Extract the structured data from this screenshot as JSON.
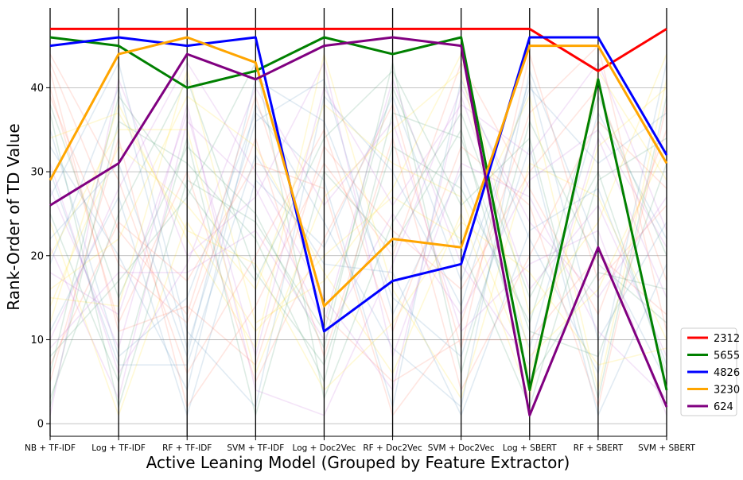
{
  "chart_data": {
    "type": "line",
    "subtype": "parallel-coordinates",
    "title": "",
    "xlabel": "Active Leaning Model (Grouped by Feature Extractor)",
    "ylabel": "Rank-Order of TD Value",
    "categories": [
      "NB + TF-IDF",
      "Log + TF-IDF",
      "RF + TF-IDF",
      "SVM + TF-IDF",
      "Log + Doc2Vec",
      "RF + Doc2Vec",
      "SVM + Doc2Vec",
      "Log + SBERT",
      "RF + SBERT",
      "SVM + SBERT"
    ],
    "ylim": [
      -1.5,
      49.5
    ],
    "yticks": [
      0,
      10,
      20,
      30,
      40
    ],
    "grid": true,
    "legend_position": "bottom-right",
    "series": [
      {
        "name": "2312",
        "color": "#ff0000",
        "values": [
          47,
          47,
          47,
          47,
          47,
          47,
          47,
          47,
          42,
          47
        ]
      },
      {
        "name": "5655",
        "color": "#008000",
        "values": [
          46,
          45,
          40,
          42,
          46,
          44,
          46,
          4,
          41,
          4
        ]
      },
      {
        "name": "4826",
        "color": "#0000ff",
        "values": [
          45,
          46,
          45,
          46,
          11,
          17,
          19,
          46,
          46,
          32
        ]
      },
      {
        "name": "3230",
        "color": "#ffa500",
        "values": [
          29,
          44,
          46,
          43,
          14,
          22,
          21,
          45,
          45,
          31
        ]
      },
      {
        "name": "624",
        "color": "#800080",
        "values": [
          26,
          31,
          44,
          41,
          45,
          46,
          45,
          1,
          21,
          2
        ]
      }
    ],
    "background_series_colors": [
      "#ff6347",
      "#2e8b57",
      "#4682b4",
      "#ffd700",
      "#ba55d3"
    ],
    "background_series": [
      [
        40,
        12,
        30,
        5,
        22,
        38,
        9,
        44,
        17,
        26
      ],
      [
        3,
        25,
        41,
        18,
        7,
        33,
        28,
        12,
        39,
        20
      ],
      [
        35,
        8,
        15,
        37,
        29,
        2,
        41,
        22,
        6,
        43
      ],
      [
        12,
        38,
        22,
        9,
        44,
        16,
        3,
        31,
        27,
        10
      ],
      [
        21,
        3,
        36,
        28,
        12,
        41,
        19,
        7,
        34,
        15
      ],
      [
        44,
        29,
        6,
        20,
        35,
        11,
        33,
        26,
        2,
        38
      ],
      [
        8,
        17,
        27,
        43,
        3,
        24,
        37,
        15,
        30,
        6
      ],
      [
        27,
        43,
        11,
        2,
        39,
        30,
        14,
        41,
        10,
        24
      ],
      [
        16,
        22,
        39,
        33,
        18,
        6,
        25,
        3,
        42,
        29
      ],
      [
        31,
        6,
        19,
        40,
        26,
        36,
        11,
        19,
        23,
        1
      ],
      [
        5,
        34,
        2,
        14,
        31,
        20,
        43,
        28,
        13,
        35
      ],
      [
        38,
        15,
        33,
        25,
        9,
        43,
        6,
        36,
        19,
        12
      ],
      [
        19,
        40,
        9,
        36,
        41,
        13,
        30,
        9,
        37,
        22
      ],
      [
        24,
        1,
        24,
        11,
        20,
        27,
        22,
        39,
        4,
        41
      ],
      [
        10,
        28,
        43,
        30,
        15,
        4,
        39,
        16,
        26,
        8
      ],
      [
        42,
        11,
        14,
        7,
        33,
        23,
        16,
        30,
        40,
        17
      ],
      [
        2,
        36,
        31,
        22,
        5,
        37,
        34,
        11,
        8,
        31
      ],
      [
        33,
        20,
        4,
        38,
        24,
        9,
        2,
        42,
        21,
        5
      ],
      [
        14,
        33,
        26,
        16,
        38,
        31,
        27,
        6,
        33,
        40
      ],
      [
        28,
        9,
        38,
        4,
        1,
        19,
        40,
        24,
        15,
        27
      ],
      [
        7,
        24,
        17,
        31,
        28,
        1,
        12,
        37,
        45,
        11
      ],
      [
        37,
        2,
        29,
        24,
        11,
        40,
        21,
        2,
        29,
        34
      ],
      [
        22,
        31,
        8,
        41,
        36,
        15,
        8,
        33,
        1,
        19
      ],
      [
        15,
        14,
        42,
        12,
        17,
        28,
        44,
        13,
        24,
        44
      ],
      [
        1,
        41,
        20,
        27,
        43,
        8,
        31,
        27,
        11,
        3
      ],
      [
        39,
        19,
        12,
        34,
        8,
        34,
        4,
        20,
        36,
        28
      ],
      [
        25,
        5,
        34,
        1,
        30,
        21,
        35,
        5,
        18,
        16
      ],
      [
        11,
        27,
        1,
        29,
        21,
        39,
        17,
        40,
        31,
        37
      ],
      [
        34,
        37,
        23,
        19,
        4,
        12,
        24,
        18,
        7,
        9
      ],
      [
        18,
        13,
        37,
        8,
        40,
        26,
        38,
        32,
        43,
        23
      ],
      [
        43,
        23,
        13,
        39,
        13,
        5,
        10,
        10,
        20,
        13
      ],
      [
        6,
        39,
        28,
        17,
        34,
        42,
        26,
        34,
        3,
        39
      ],
      [
        30,
        7,
        7,
        32,
        19,
        18,
        1,
        23,
        28,
        7
      ],
      [
        20,
        35,
        35,
        6,
        27,
        35,
        42,
        8,
        16,
        33
      ],
      [
        9,
        18,
        18,
        23,
        10,
        25,
        13,
        29,
        35,
        21
      ]
    ],
    "legend": [
      {
        "label": "2312",
        "color": "#ff0000"
      },
      {
        "label": "5655",
        "color": "#008000"
      },
      {
        "label": "4826",
        "color": "#0000ff"
      },
      {
        "label": "3230",
        "color": "#ffa500"
      },
      {
        "label": "624",
        "color": "#800080"
      }
    ]
  }
}
